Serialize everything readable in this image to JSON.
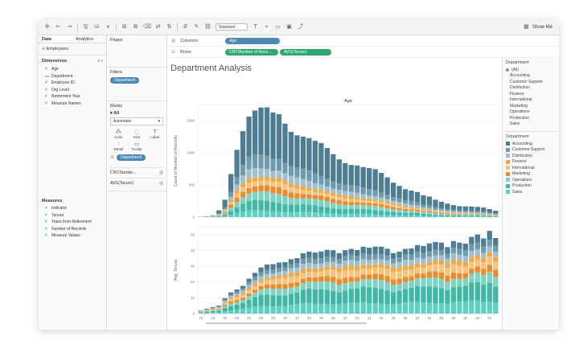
{
  "toolbar": {
    "icons": [
      "tableau-logo-icon",
      "undo-icon",
      "redo-icon",
      "save-icon",
      "new-datasource-icon",
      "pause-icon",
      "new-sheet-icon",
      "duplicate-icon",
      "clear-icon",
      "swap-icon",
      "sort-asc-icon",
      "sort-desc-icon",
      "highlight-icon",
      "group-icon",
      "label-icon",
      "fix-axes-icon",
      "fit-icon",
      "presentation-icon",
      "share-icon"
    ],
    "fit_select": "Standard",
    "show_me": "Show Me"
  },
  "data_pane": {
    "tabs": [
      "Data",
      "Analytics"
    ],
    "datasource": "Employees",
    "dimensions_header": "Dimensions",
    "dimensions": [
      "Age",
      "Department",
      "Employee ID",
      "Org Level",
      "Retirement Year",
      "Measure Names"
    ],
    "measures_header": "Measures",
    "measures": [
      "Indicator",
      "Tenure",
      "Years from Retirement",
      "Number of Records",
      "Measure Values"
    ]
  },
  "shelves": {
    "pages": "Pages",
    "filters": "Filters",
    "filter_pill": "Department",
    "marks": "Marks",
    "marks_all": "All",
    "mark_type": "Automatic",
    "mark_buttons": [
      "Color",
      "Size",
      "Label",
      "Detail",
      "Tooltip"
    ],
    "marks_pill": "Department",
    "measure_rows": [
      "CNT(Numbe...",
      "AVG(Tenure)"
    ],
    "columns_label": "Columns",
    "columns_pill": "Age",
    "rows_label": "Rows",
    "rows_pills": [
      "CNT(Number of Reco...",
      "AVG(Tenure)"
    ]
  },
  "legend": {
    "filter_header": "Department",
    "filter_items": [
      "(All)",
      "Accounting",
      "Customer Support",
      "Distribution",
      "Finance",
      "International",
      "Marketing",
      "Operations",
      "Production",
      "Sales"
    ],
    "color_header": "Department",
    "color_items": [
      "Accounting",
      "Customer Support",
      "Distribution",
      "Finance",
      "International",
      "Marketing",
      "Operations",
      "Production",
      "Sales"
    ],
    "colors": [
      "#4e7c93",
      "#6f9bb0",
      "#a2c0cc",
      "#f5a742",
      "#f8c27a",
      "#ee8a2c",
      "#7fd3c3",
      "#3fb8a6",
      "#5ed0c1"
    ]
  },
  "chart_data": [
    {
      "type": "bar",
      "title": "Department Analysis",
      "column_header": "Age",
      "ylabel": "Count of Number of Records",
      "ylim": [
        0,
        1750
      ],
      "yticks": [
        0,
        500,
        1000,
        1500
      ],
      "x": [
        16,
        17,
        18,
        19,
        20,
        21,
        22,
        23,
        24,
        25,
        26,
        27,
        28,
        29,
        30,
        31,
        32,
        33,
        34,
        35,
        36,
        37,
        38,
        39,
        40,
        41,
        42,
        43,
        44,
        45,
        46,
        47,
        48,
        49,
        50,
        51,
        52,
        53,
        54,
        55,
        56,
        57,
        58,
        59,
        60,
        61,
        62,
        63,
        64,
        65
      ],
      "values": [
        5,
        10,
        20,
        100,
        270,
        700,
        1120,
        1420,
        1600,
        1620,
        1610,
        1600,
        1560,
        1600,
        1520,
        1420,
        1350,
        1280,
        1200,
        1120,
        1080,
        1030,
        980,
        940,
        900,
        860,
        820,
        760,
        720,
        700,
        660,
        620,
        560,
        520,
        460,
        420,
        380,
        320,
        300,
        260,
        240,
        220,
        200,
        180,
        170,
        160,
        150,
        140,
        120,
        100
      ],
      "stack_fractions": {
        "Accounting": 0.42,
        "Customer Support": 0.12,
        "Distribution": 0.08,
        "Finance": 0.04,
        "International": 0.05,
        "Marketing": 0.06,
        "Operations": 0.08,
        "Production": 0.09,
        "Sales": 0.06
      }
    },
    {
      "type": "bar",
      "ylabel": "Avg. Tenure",
      "xlabel": "Age",
      "ylim": [
        0,
        55
      ],
      "yticks": [
        0,
        10,
        20,
        30,
        40,
        50
      ],
      "xticks": [
        16,
        18,
        20,
        22,
        24,
        26,
        28,
        30,
        32,
        34,
        36,
        38,
        40,
        42,
        44,
        46,
        48,
        50,
        52,
        54,
        56,
        58,
        60,
        62,
        64
      ],
      "x": [
        16,
        17,
        18,
        19,
        20,
        21,
        22,
        23,
        24,
        25,
        26,
        27,
        28,
        29,
        30,
        31,
        32,
        33,
        34,
        35,
        36,
        37,
        38,
        39,
        40,
        41,
        42,
        43,
        44,
        45,
        46,
        47,
        48,
        49,
        50,
        51,
        52,
        53,
        54,
        55,
        56,
        57,
        58,
        59,
        60,
        61,
        62,
        63,
        64,
        65
      ],
      "values": [
        2,
        3,
        4,
        5,
        10,
        14,
        16,
        18,
        22,
        25,
        28,
        30,
        31,
        33,
        34,
        36,
        36,
        38,
        38,
        37,
        38,
        40,
        41,
        40,
        42,
        42,
        40,
        41,
        40,
        41,
        42,
        42,
        40,
        41,
        42,
        41,
        42,
        41,
        43,
        45,
        46,
        44,
        48,
        46,
        44,
        47,
        48,
        46,
        52,
        49
      ],
      "stack_fractions": {
        "Accounting": 0.1,
        "Customer Support": 0.08,
        "Distribution": 0.08,
        "Finance": 0.06,
        "International": 0.1,
        "Marketing": 0.08,
        "Operations": 0.12,
        "Production": 0.22,
        "Sales": 0.16
      }
    }
  ]
}
